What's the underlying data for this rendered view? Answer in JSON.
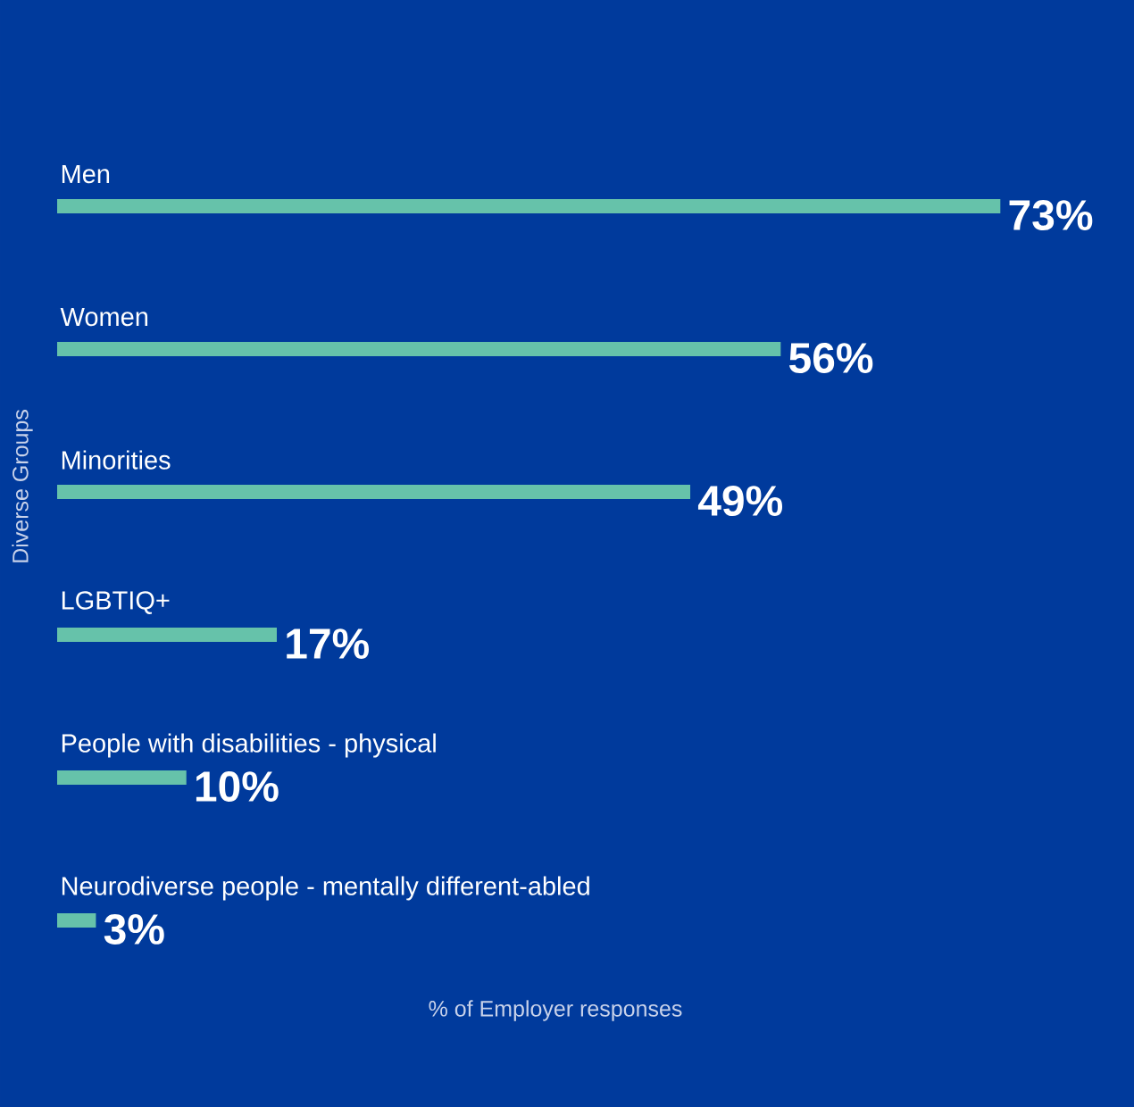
{
  "chart_data": {
    "type": "bar",
    "orientation": "horizontal",
    "categories": [
      "Men",
      "Women",
      "Minorities",
      "LGBTIQ+",
      "People with disabilities - physical",
      "Neurodiverse people - mentally different-abled"
    ],
    "values": [
      73,
      56,
      49,
      17,
      10,
      3
    ],
    "value_labels": [
      "73%",
      "56%",
      "49%",
      "17%",
      "10%",
      "3%"
    ],
    "color": "#66c2aa",
    "xlabel": "% of Employer responses",
    "ylabel": "Diverse Groups"
  }
}
